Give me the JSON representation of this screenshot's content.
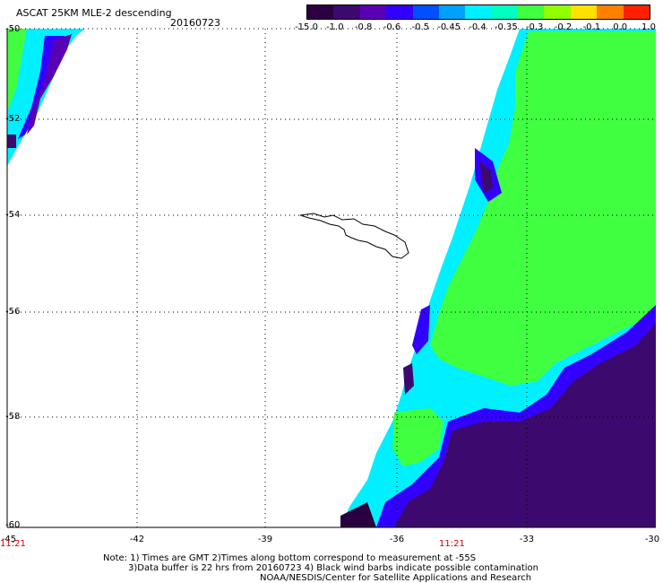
{
  "header": {
    "title": "ASCAT 25KM MLE-2 descending",
    "date": "20160723"
  },
  "colorbar": {
    "labels": [
      "-15.0",
      "-1.0",
      "-0.8",
      "-0.6",
      "-0.5",
      "-0.45",
      "-0.4",
      "-0.35",
      "-0.3",
      "-0.2",
      "-0.1",
      "0.0",
      "1.0"
    ],
    "colors": [
      "#2b0040",
      "#3c0a6e",
      "#5a00b4",
      "#3200ff",
      "#0050ff",
      "#00a0ff",
      "#00f0ff",
      "#00ffc0",
      "#40ff40",
      "#90ff00",
      "#ffe000",
      "#ff8000",
      "#ff2000"
    ]
  },
  "map": {
    "lat_labels": [
      "-50",
      "-52",
      "-54",
      "-56",
      "-58",
      "-60"
    ],
    "lon_labels": [
      "-45",
      "-42",
      "-39",
      "-36",
      "-33",
      "-30"
    ],
    "time_labels": [
      "11:21",
      "11:21"
    ],
    "gridline_color": "#000000",
    "background_color": "#ffffff"
  },
  "footer": {
    "note_line1": "Note: 1) Times are GMT 2)Times along bottom correspond to measurement at -55S",
    "note_line2": "3)Data buffer is 22 hrs from 20160723 4) Black wind barbs indicate possible contamination",
    "note_line3": "NOAA/NESDIS/Center for Satellite Applications and Research"
  }
}
